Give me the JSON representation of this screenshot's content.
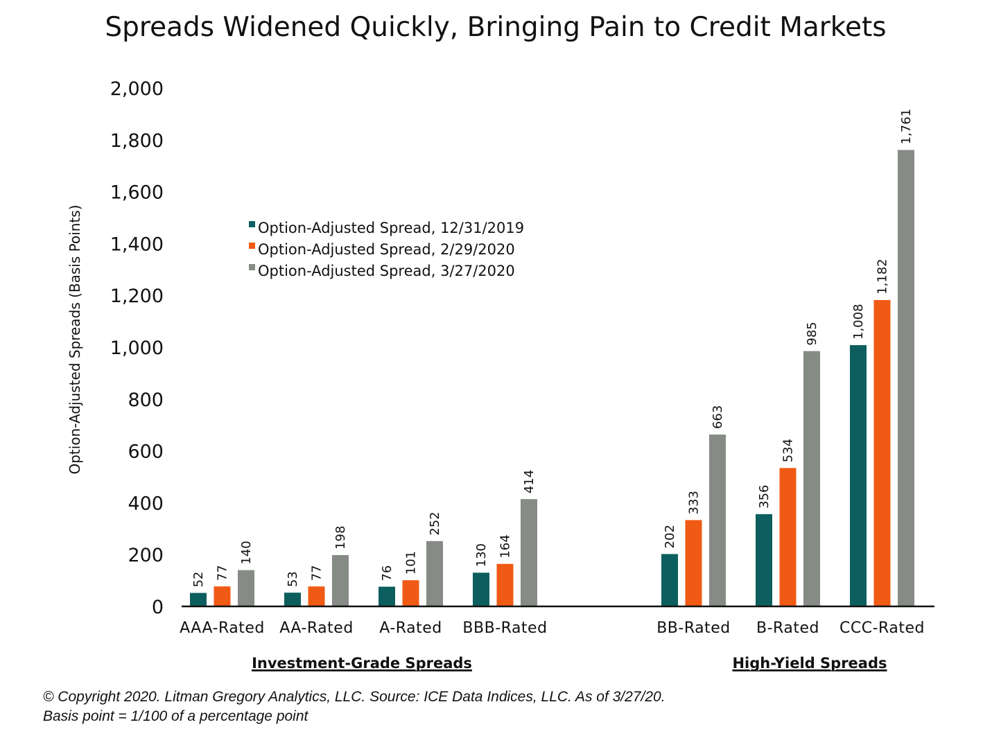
{
  "chart_data": {
    "type": "bar",
    "title": "Spreads Widened Quickly, Bringing Pain to Credit Markets",
    "ylabel": "Option-Adjusted Spreads (Basis Points)",
    "xlabel": "",
    "ylim": [
      0,
      2000
    ],
    "yticks": [
      0,
      200,
      400,
      600,
      800,
      1000,
      1200,
      1400,
      1600,
      1800,
      2000
    ],
    "ytick_labels": [
      "0",
      "200",
      "400",
      "600",
      "800",
      "1,000",
      "1,200",
      "1,400",
      "1,600",
      "1,800",
      "2,000"
    ],
    "categories": [
      "AAA-Rated",
      "AA-Rated",
      "A-Rated",
      "BBB-Rated",
      "BB-Rated",
      "B-Rated",
      "CCC-Rated"
    ],
    "groups": [
      {
        "label": "Investment-Grade Spreads",
        "categories": [
          "AAA-Rated",
          "AA-Rated",
          "A-Rated",
          "BBB-Rated"
        ]
      },
      {
        "label": "High-Yield Spreads",
        "categories": [
          "BB-Rated",
          "B-Rated",
          "CCC-Rated"
        ]
      }
    ],
    "series": [
      {
        "name": "Option-Adjusted Spread, 12/31/2019",
        "color": "#0d5f5f",
        "values": [
          52,
          53,
          76,
          130,
          202,
          356,
          1008
        ],
        "labels": [
          "52",
          "53",
          "76",
          "130",
          "202",
          "356",
          "1,008"
        ]
      },
      {
        "name": "Option-Adjusted Spread, 2/29/2020",
        "color": "#f05a14",
        "values": [
          77,
          77,
          101,
          164,
          333,
          534,
          1182
        ],
        "labels": [
          "77",
          "77",
          "101",
          "164",
          "333",
          "534",
          "1,182"
        ]
      },
      {
        "name": "Option-Adjusted Spread, 3/27/2020",
        "color": "#868b86",
        "values": [
          140,
          198,
          252,
          414,
          663,
          985,
          1761
        ],
        "labels": [
          "140",
          "198",
          "252",
          "414",
          "663",
          "985",
          "1,761"
        ]
      }
    ],
    "legend_position": "upper-left",
    "grid": false
  },
  "footnote": {
    "line1": "© Copyright 2020. Litman Gregory Analytics, LLC. Source: ICE Data Indices, LLC. As of 3/27/20.",
    "line2": "Basis point = 1/100 of a percentage point"
  }
}
